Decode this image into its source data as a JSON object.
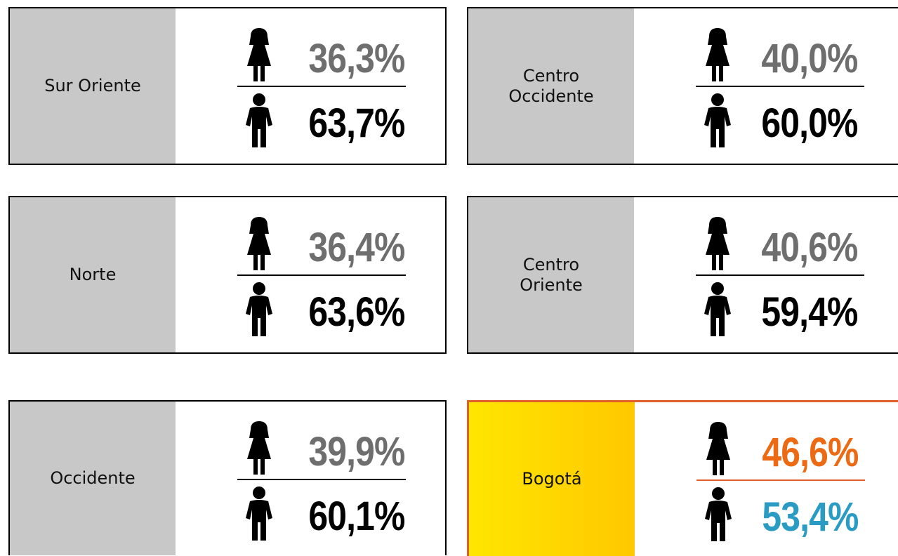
{
  "cards": [
    {
      "region": "Sur Oriente",
      "female": "36,3%",
      "male": "63,7%"
    },
    {
      "region": "Centro Occidente",
      "female": "40,0%",
      "male": "60,0%"
    },
    {
      "region": "Norte",
      "female": "36,4%",
      "male": "63,6%"
    },
    {
      "region": "Centro Oriente",
      "female": "40,6%",
      "male": "59,4%"
    },
    {
      "region": "Occidente",
      "female": "39,9%",
      "male": "60,1%"
    },
    {
      "region": "Bogotá",
      "female": "46,6%",
      "male": "53,4%"
    }
  ]
}
